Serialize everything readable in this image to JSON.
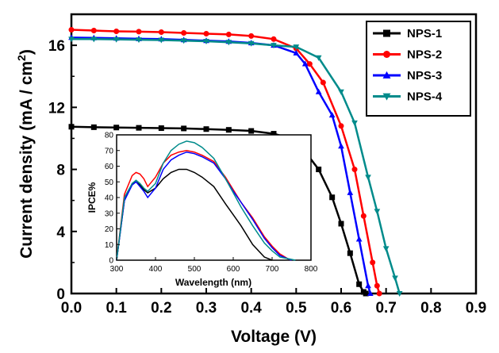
{
  "chart_data": [
    {
      "type": "line",
      "xlabel": "Voltage (V)",
      "ylabel": "Current density (mA / cm",
      "ylabel_sup": "2",
      "ylabel_close": ")",
      "xlim": [
        0.0,
        0.9
      ],
      "ylim": [
        0,
        18
      ],
      "xticks": [
        "0.0",
        "0.1",
        "0.2",
        "0.3",
        "0.4",
        "0.5",
        "0.6",
        "0.7",
        "0.8",
        "0.9"
      ],
      "yticks": [
        "0",
        "4",
        "8",
        "12",
        "16"
      ],
      "legend_position": "top-right",
      "series": [
        {
          "name": "NPS-1",
          "color": "#000000",
          "marker": "square",
          "x": [
            0.0,
            0.05,
            0.1,
            0.15,
            0.2,
            0.25,
            0.3,
            0.35,
            0.4,
            0.45,
            0.5,
            0.55,
            0.58,
            0.6,
            0.62,
            0.64,
            0.65,
            0.655
          ],
          "y": [
            10.75,
            10.72,
            10.7,
            10.68,
            10.66,
            10.64,
            10.6,
            10.55,
            10.48,
            10.3,
            9.9,
            8.0,
            6.2,
            4.5,
            2.6,
            0.6,
            0.1,
            0.0
          ]
        },
        {
          "name": "NPS-2",
          "color": "#ff0000",
          "marker": "circle",
          "x": [
            0.0,
            0.05,
            0.1,
            0.15,
            0.2,
            0.25,
            0.3,
            0.35,
            0.4,
            0.45,
            0.5,
            0.53,
            0.56,
            0.6,
            0.63,
            0.65,
            0.67,
            0.68,
            0.685
          ],
          "y": [
            17.0,
            16.95,
            16.9,
            16.88,
            16.85,
            16.8,
            16.75,
            16.7,
            16.6,
            16.4,
            15.8,
            14.8,
            13.6,
            10.8,
            8.0,
            5.0,
            2.0,
            0.5,
            0.0
          ]
        },
        {
          "name": "NPS-3",
          "color": "#0000ff",
          "marker": "triangle-up",
          "x": [
            0.0,
            0.05,
            0.1,
            0.15,
            0.2,
            0.25,
            0.3,
            0.35,
            0.4,
            0.45,
            0.5,
            0.52,
            0.55,
            0.58,
            0.6,
            0.62,
            0.64,
            0.66,
            0.665
          ],
          "y": [
            16.5,
            16.48,
            16.45,
            16.42,
            16.4,
            16.35,
            16.3,
            16.25,
            16.15,
            16.0,
            15.5,
            14.8,
            13.0,
            11.5,
            9.5,
            6.5,
            3.5,
            0.5,
            0.0
          ]
        },
        {
          "name": "NPS-4",
          "color": "#008b8b",
          "marker": "triangle-down",
          "x": [
            0.0,
            0.05,
            0.1,
            0.15,
            0.2,
            0.25,
            0.3,
            0.35,
            0.4,
            0.45,
            0.5,
            0.55,
            0.6,
            0.63,
            0.66,
            0.68,
            0.7,
            0.72,
            0.73
          ],
          "y": [
            16.4,
            16.4,
            16.38,
            16.36,
            16.34,
            16.3,
            16.26,
            16.2,
            16.12,
            16.0,
            15.9,
            15.2,
            13.0,
            11.0,
            7.5,
            5.3,
            2.9,
            1.0,
            0.0
          ]
        }
      ]
    },
    {
      "type": "line",
      "xlabel": "Wavelength (nm)",
      "ylabel": "IPCE%",
      "xlim": [
        300,
        800
      ],
      "ylim": [
        0,
        80
      ],
      "xticks": [
        "300",
        "400",
        "500",
        "600",
        "700",
        "800"
      ],
      "yticks": [
        "0",
        "10",
        "20",
        "30",
        "40",
        "50",
        "60",
        "70",
        "80"
      ],
      "series": [
        {
          "color": "#000000",
          "x": [
            300,
            320,
            340,
            350,
            360,
            370,
            380,
            400,
            420,
            440,
            460,
            480,
            500,
            520,
            550,
            580,
            600,
            620,
            650,
            680,
            700
          ],
          "y": [
            0,
            38,
            49,
            50,
            48,
            45,
            43,
            46,
            52,
            56,
            58,
            58,
            56,
            53,
            47,
            36,
            29,
            22,
            10,
            2,
            0
          ]
        },
        {
          "color": "#ff0000",
          "x": [
            300,
            320,
            340,
            350,
            360,
            370,
            380,
            400,
            420,
            440,
            460,
            480,
            500,
            520,
            550,
            580,
            600,
            620,
            650,
            680,
            700,
            720,
            740,
            750
          ],
          "y": [
            0,
            42,
            54,
            56,
            55,
            52,
            47,
            53,
            62,
            67,
            69,
            70,
            69,
            67,
            63,
            53,
            45,
            37,
            27,
            15,
            9,
            4,
            1,
            0
          ]
        },
        {
          "color": "#0000ff",
          "x": [
            300,
            320,
            340,
            350,
            360,
            370,
            380,
            400,
            420,
            440,
            460,
            480,
            500,
            520,
            550,
            580,
            600,
            620,
            650,
            680,
            700,
            720,
            740,
            750
          ],
          "y": [
            0,
            38,
            48,
            50,
            47,
            44,
            40,
            46,
            58,
            64,
            67,
            69,
            68,
            66,
            62,
            52,
            44,
            37,
            26,
            14,
            8,
            3,
            1,
            0
          ]
        },
        {
          "color": "#008b8b",
          "x": [
            300,
            320,
            340,
            350,
            360,
            370,
            380,
            400,
            420,
            440,
            460,
            480,
            500,
            520,
            550,
            580,
            600,
            620,
            650,
            680,
            700,
            720,
            740,
            760
          ],
          "y": [
            0,
            40,
            49,
            51,
            49,
            46,
            44,
            49,
            62,
            70,
            74,
            76,
            75,
            72,
            65,
            52,
            43,
            34,
            22,
            11,
            6,
            2,
            1,
            0
          ]
        }
      ]
    }
  ]
}
